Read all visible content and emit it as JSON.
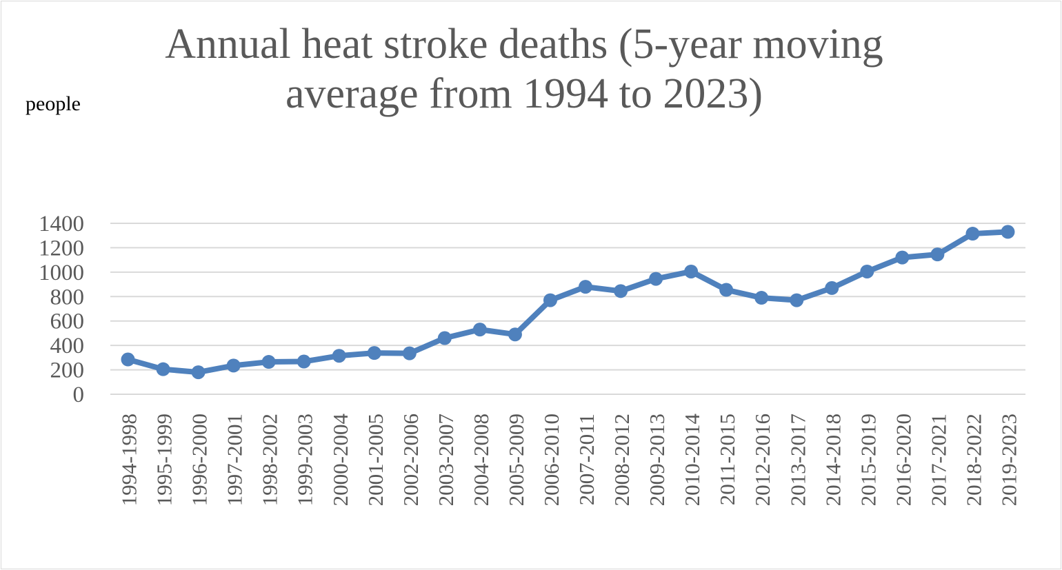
{
  "chart_data": {
    "type": "line",
    "title": "Annual heat stroke deaths (5-year moving average from 1994 to 2023)",
    "ylabel": "people",
    "xlabel": "",
    "ylim": [
      0,
      1400
    ],
    "yticks": [
      0,
      200,
      400,
      600,
      800,
      1000,
      1200,
      1400
    ],
    "grid": true,
    "legend": "none",
    "categories": [
      "1994-1998",
      "1995-1999",
      "1996-2000",
      "1997-2001",
      "1998-2002",
      "1999-2003",
      "2000-2004",
      "2001-2005",
      "2002-2006",
      "2003-2007",
      "2004-2008",
      "2005-2009",
      "2006-2010",
      "2007-2011",
      "2008-2012",
      "2009-2013",
      "2010-2014",
      "2011-2015",
      "2012-2016",
      "2013-2017",
      "2014-2018",
      "2015-2019",
      "2016-2020",
      "2017-2021",
      "2018-2022",
      "2019-2023"
    ],
    "series": [
      {
        "values": [
          285,
          205,
          180,
          235,
          265,
          268,
          315,
          338,
          335,
          460,
          530,
          490,
          770,
          880,
          845,
          945,
          1005,
          855,
          790,
          770,
          870,
          1005,
          1120,
          1145,
          1315,
          1330
        ]
      }
    ],
    "colors": {
      "line": "#4f81bd",
      "grid": "#d9d9d9",
      "text": "#595959"
    }
  }
}
